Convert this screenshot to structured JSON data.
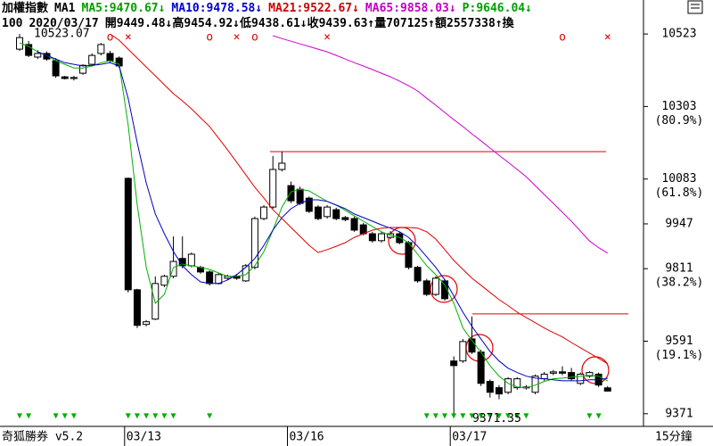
{
  "header": {
    "line1": [
      {
        "text": "加權指數",
        "color": "#000000"
      },
      {
        "text": "MA1",
        "color": "#000000"
      },
      {
        "text": "MA5:9470.67↓",
        "color": "#00a000"
      },
      {
        "text": "MA10:9478.58↓",
        "color": "#0000d0"
      },
      {
        "text": "MA21:9522.67↓",
        "color": "#d00000"
      },
      {
        "text": "MA65:9858.03↓",
        "color": "#c000c0"
      },
      {
        "text": "P:9646.04↓",
        "color": "#00a000"
      }
    ],
    "line2": [
      {
        "text": "100",
        "color": "#000000"
      },
      {
        "text": "2020/03/17",
        "color": "#000000"
      },
      {
        "text": "開9449.48↓高9454.92↓低9438.61↓收9439.63↑量707125↑額2557338↑換",
        "color": "#000000"
      }
    ]
  },
  "footer": {
    "left": "奇狐勝券 v5.2",
    "right": "15分鐘"
  },
  "chart_data": {
    "type": "candlestick",
    "categories": [
      null,
      null,
      null,
      null,
      null,
      null,
      null,
      null,
      null,
      null,
      null,
      null,
      "03/13",
      null,
      null,
      null,
      null,
      null,
      null,
      null,
      null,
      null,
      null,
      null,
      null,
      null,
      null,
      null,
      null,
      null,
      "03/16",
      null,
      null,
      null,
      null,
      null,
      null,
      null,
      null,
      null,
      null,
      null,
      null,
      null,
      null,
      null,
      null,
      null,
      "03/17",
      null,
      null,
      null,
      null,
      null,
      null,
      null,
      null,
      null,
      null,
      null,
      null,
      null,
      null,
      null,
      null,
      null
    ],
    "open": [
      10477,
      10491,
      10453,
      10464,
      10442,
      10393,
      10388,
      10404,
      10431,
      10464,
      10464,
      10450,
      10085,
      9747,
      9642,
      9658,
      9761,
      9788,
      9842,
      9820,
      9815,
      9801,
      9766,
      9782,
      9788,
      9774,
      9815,
      9963,
      9998,
      10112,
      10063,
      10052,
      10025,
      9998,
      9969,
      9990,
      9966,
      9963,
      9944,
      9917,
      9896,
      9906,
      9917,
      9890,
      9815,
      9774,
      9733,
      9774,
      9531,
      9531,
      9598,
      9558,
      9469,
      9450,
      9436,
      9450,
      9450,
      9436,
      9477,
      9494,
      9498,
      9496,
      9463,
      9485,
      9491,
      9449.48
    ],
    "high": [
      10523.07,
      10502,
      10474,
      10470,
      10450,
      10396,
      10396,
      10431,
      10464,
      10496,
      10472,
      10455,
      10088,
      9750,
      9655,
      9788,
      9793,
      9909,
      9909,
      9860,
      9820,
      9806,
      9798,
      9793,
      9795,
      9825,
      9969,
      10004,
      10153,
      10166,
      10075,
      10060,
      10030,
      10004,
      10004,
      9996,
      9971,
      9969,
      9950,
      9923,
      9923,
      9925,
      9923,
      9895,
      9820,
      9780,
      9788,
      9780,
      9545,
      9598,
      9666,
      9565,
      9475,
      9458,
      9482,
      9482,
      9458,
      9490,
      9498,
      9504,
      9515,
      9510,
      9496,
      9500,
      9496,
      9454.92
    ],
    "low": [
      10472,
      10453,
      10447,
      10442,
      10390,
      10385,
      10382,
      10399,
      10426,
      10458,
      10436,
      10420,
      9739,
      9631,
      9636,
      9655,
      9755,
      9782,
      9812,
      9815,
      9796,
      9760,
      9763,
      9777,
      9777,
      9771,
      9809,
      9958,
      9993,
      10106,
      10010,
      10004,
      9980,
      9958,
      9963,
      9958,
      9955,
      9923,
      9912,
      9890,
      9890,
      9901,
      9885,
      9809,
      9768,
      9728,
      9728,
      9714,
      9371.35,
      9525,
      9552,
      9455,
      9420,
      9415,
      9430,
      9444,
      9444,
      9430,
      9471,
      9488,
      9488,
      9471,
      9458,
      9480,
      9452,
      9438.61
    ],
    "close": [
      10512,
      10458,
      10464,
      10447,
      10396,
      10388,
      10391,
      10428,
      10458,
      10491,
      10442,
      10426,
      9747,
      9639,
      9650,
      9766,
      9788,
      9833,
      9820,
      9855,
      9801,
      9766,
      9793,
      9788,
      9782,
      9820,
      9963,
      9998,
      10112,
      10131,
      10017,
      10009,
      9985,
      9963,
      9998,
      9963,
      9960,
      9928,
      9917,
      9896,
      9917,
      9917,
      9890,
      9815,
      9774,
      9733,
      9782,
      9720,
      9517,
      9590,
      9558,
      9463,
      9436,
      9431,
      9477,
      9477,
      9452,
      9485,
      9491,
      9498,
      9494,
      9477,
      9491,
      9496,
      9458,
      9439.63
    ],
    "lines": [
      {
        "name": "MA5",
        "color": "#00b000",
        "values": [
          10496,
          10485,
          10469,
          10458,
          10442,
          10431,
          10420,
          10420,
          10426,
          10436,
          10442,
          10431,
          10247,
          10004,
          9815,
          9706,
          9733,
          9815,
          9825,
          9820,
          9815,
          9809,
          9798,
          9788,
          9788,
          9793,
          9820,
          9863,
          9928,
          9998,
          10044,
          10052,
          10047,
          10031,
          10015,
          10004,
          9988,
          9971,
          9955,
          9939,
          9923,
          9912,
          9906,
          9890,
          9855,
          9820,
          9793,
          9761,
          9706,
          9631,
          9593,
          9558,
          9517,
          9485,
          9463,
          9452,
          9450,
          9458,
          9469,
          9477,
          9479,
          9482,
          9485,
          9487,
          9485,
          9470.67
        ]
      },
      {
        "name": "MA10",
        "color": "#0000c0",
        "values": [
          null,
          null,
          10469,
          10458,
          10447,
          10436,
          10431,
          10426,
          10428,
          10431,
          10436,
          10426,
          10328,
          10193,
          10071,
          9977,
          9917,
          9863,
          9820,
          9793,
          9771,
          9766,
          9766,
          9777,
          9793,
          9815,
          9842,
          9882,
          9928,
          9966,
          9993,
          10009,
          10020,
          10020,
          10015,
          10004,
          9993,
          9977,
          9966,
          9955,
          9944,
          9934,
          9923,
          9906,
          9879,
          9847,
          9815,
          9777,
          9728,
          9679,
          9636,
          9598,
          9560,
          9531,
          9509,
          9496,
          9485,
          9479,
          9477,
          9474,
          9471,
          9471,
          9471,
          9474,
          9474,
          9478.58
        ]
      },
      {
        "name": "MA21",
        "color": "#e00000",
        "values": [
          null,
          null,
          null,
          null,
          null,
          null,
          null,
          null,
          null,
          null,
          10523,
          10504,
          10477,
          10450,
          10423,
          10396,
          10369,
          10342,
          10320,
          10296,
          10269,
          10242,
          10207,
          10171,
          10134,
          10096,
          10058,
          10025,
          9990,
          9963,
          9936,
          9909,
          9882,
          9860,
          9869,
          9879,
          9890,
          9906,
          9917,
          9928,
          9934,
          9936,
          9936,
          9936,
          9934,
          9923,
          9901,
          9869,
          9836,
          9809,
          9782,
          9761,
          9739,
          9717,
          9699,
          9679,
          9663,
          9647,
          9631,
          9617,
          9604,
          9587,
          9571,
          9555,
          9539,
          9522.67
        ]
      },
      {
        "name": "MA65",
        "color": "#d000d0",
        "values": [
          null,
          null,
          null,
          null,
          null,
          null,
          null,
          null,
          null,
          null,
          null,
          null,
          null,
          null,
          null,
          null,
          null,
          null,
          null,
          null,
          null,
          null,
          null,
          null,
          null,
          null,
          null,
          null,
          10518,
          10509,
          10501,
          10493,
          10485,
          10477,
          10469,
          10458,
          10447,
          10436,
          10426,
          10415,
          10404,
          10393,
          10380,
          10366,
          10350,
          10328,
          10307,
          10285,
          10263,
          10242,
          10220,
          10199,
          10177,
          10155,
          10134,
          10112,
          10090,
          10063,
          10036,
          10009,
          9982,
          9955,
          9925,
          9895,
          9875,
          9858.03
        ]
      }
    ],
    "top_signals": [
      null,
      null,
      null,
      null,
      null,
      null,
      null,
      null,
      null,
      null,
      "o",
      null,
      "×",
      null,
      null,
      null,
      null,
      null,
      null,
      null,
      null,
      "o",
      null,
      null,
      "×",
      null,
      "o",
      null,
      null,
      null,
      null,
      null,
      null,
      null,
      "×",
      null,
      null,
      null,
      null,
      null,
      null,
      null,
      null,
      null,
      null,
      null,
      null,
      null,
      null,
      null,
      null,
      null,
      null,
      null,
      null,
      null,
      null,
      null,
      null,
      null,
      "o",
      null,
      null,
      null,
      null,
      "×"
    ],
    "bottom_signals": [
      "▼",
      "▼",
      null,
      null,
      "▼",
      "▼",
      "▼",
      null,
      null,
      null,
      null,
      null,
      "▼",
      "▼",
      "▼",
      "▼",
      "▼",
      "▼",
      null,
      null,
      null,
      "▼",
      null,
      null,
      null,
      null,
      null,
      null,
      null,
      null,
      null,
      null,
      null,
      null,
      null,
      null,
      null,
      null,
      null,
      null,
      null,
      null,
      null,
      null,
      null,
      "▼",
      "▼",
      "▼",
      "▼",
      "▼",
      "▼",
      "▼",
      "▼",
      "▼",
      "▼",
      "▼",
      "▼",
      null,
      null,
      null,
      null,
      null,
      null,
      "▼",
      "▼",
      null
    ],
    "hlines": [
      {
        "value": 10166,
        "color": "#e00000"
      },
      {
        "value": 9674,
        "color": "#e00000"
      }
    ],
    "annotations": [
      {
        "text": "10523.07",
        "value": 10523.07
      },
      {
        "text": "9371.35",
        "value": 9371.35
      }
    ],
    "ylim": [
      9338,
      10572
    ],
    "yticks": [
      10523,
      10303,
      10083,
      9947,
      9811,
      9591,
      9371
    ],
    "fib_labels": [
      {
        "value": 10303,
        "label": "(80.9%)"
      },
      {
        "value": 10083,
        "label": "(61.8%)"
      },
      {
        "value": 9811,
        "label": "(38.2%)"
      },
      {
        "value": 9591,
        "label": "(19.1%)"
      }
    ],
    "up_color": "#ffffff",
    "down_color": "#000000",
    "signal_top_color": "#e00000",
    "signal_bottom_color": "#00b000"
  }
}
